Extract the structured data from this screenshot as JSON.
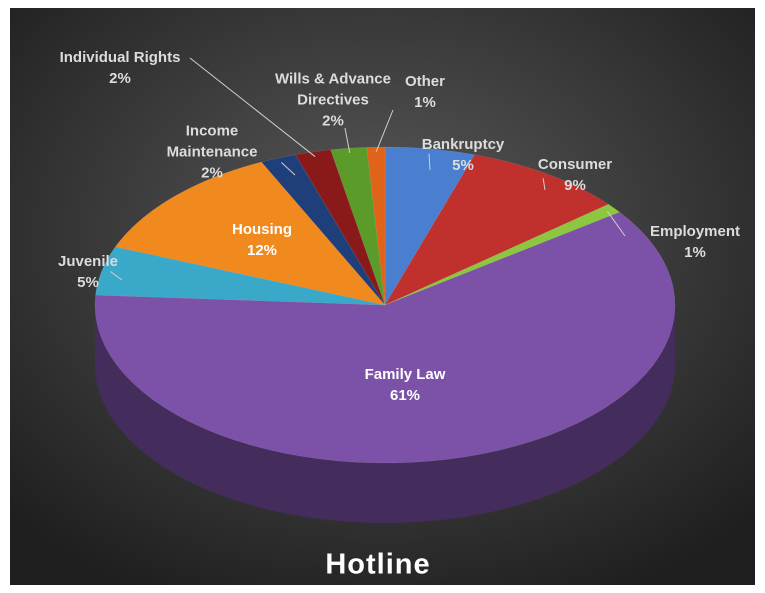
{
  "chart_data": {
    "type": "pie3d",
    "title": "Hotline",
    "categories": [
      "Bankruptcy",
      "Consumer",
      "Employment",
      "Family Law",
      "Juvenile",
      "Housing",
      "Income Maintenance",
      "Individual Rights",
      "Wills & Advance Directives",
      "Other"
    ],
    "values": [
      5,
      9,
      1,
      61,
      5,
      12,
      2,
      2,
      2,
      1
    ],
    "value_labels": [
      "5%",
      "9%",
      "1%",
      "61%",
      "5%",
      "12%",
      "2%",
      "2%",
      "2%",
      "1%"
    ],
    "colors": [
      "#4a7fcf",
      "#c0302c",
      "#8dc63f",
      "#7b52a8",
      "#3aa9c9",
      "#f08a1f",
      "#1f3f7a",
      "#8a1a1a",
      "#5b9b2a",
      "#e0631a"
    ]
  }
}
